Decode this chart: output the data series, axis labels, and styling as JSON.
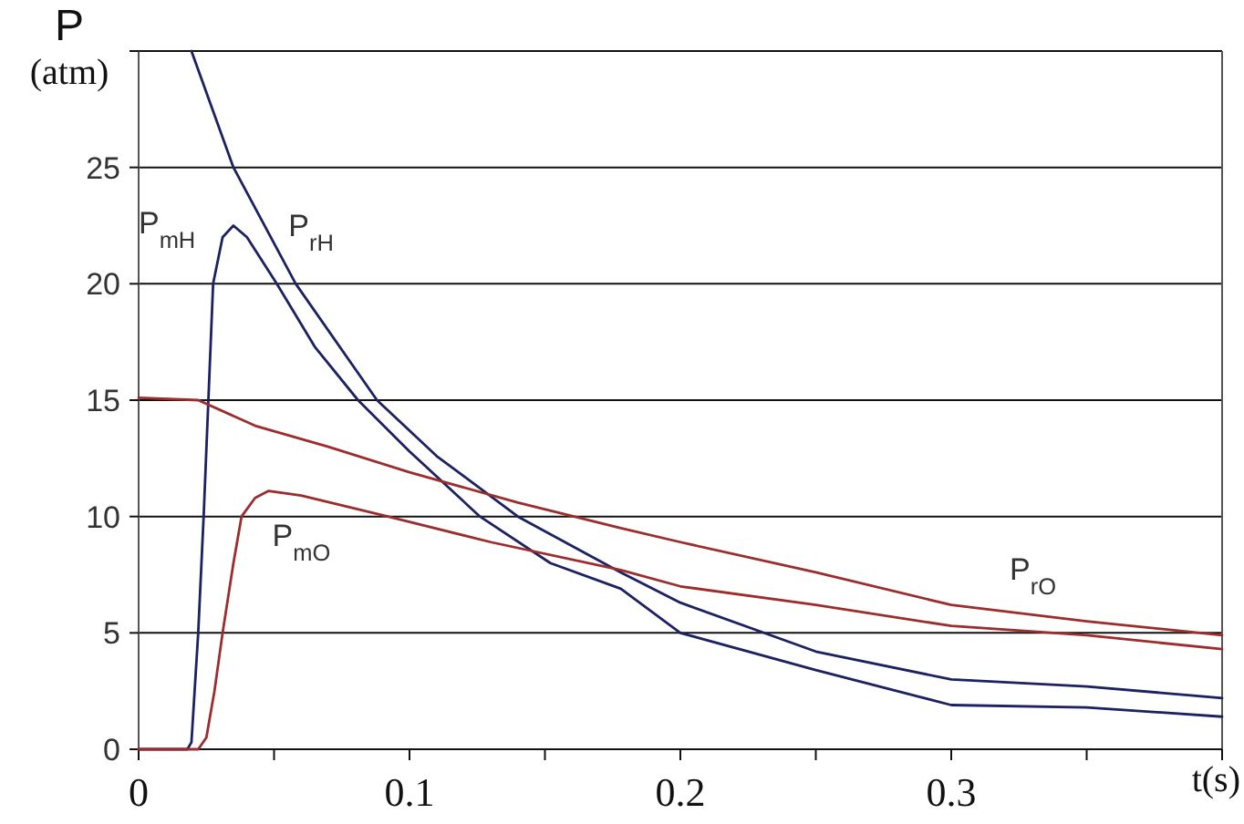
{
  "chart_data": {
    "type": "line",
    "xlabel": "t(s)",
    "ylabel": "P (atm)",
    "xlim": [
      0,
      0.4
    ],
    "xticks": [
      0,
      {
        "value": 0.05,
        "label": null
      },
      0.1,
      {
        "value": 0.15,
        "label": null
      },
      0.2,
      {
        "value": 0.25,
        "label": null
      },
      0.3,
      {
        "value": 0.35,
        "label": null
      },
      {
        "value": 0.4,
        "label": null
      }
    ],
    "ylim": [
      0,
      30
    ],
    "yticks": [
      0,
      5,
      10,
      15,
      20,
      25,
      {
        "value": 30,
        "label": null
      }
    ],
    "grid": "y",
    "marker": "none",
    "line_style": "solid",
    "series": [
      {
        "name": "P$_{mH}$",
        "color": "#1c2160",
        "x": [
          0,
          0.018,
          0.0195,
          0.022,
          0.024,
          0.0275,
          0.031,
          0.035,
          0.04,
          0.051,
          0.065,
          0.081,
          0.1,
          0.126,
          0.152,
          0.178,
          0.2,
          0.25,
          0.3,
          0.35,
          0.4
        ],
        "values": [
          0,
          0,
          0.3,
          5,
          10,
          20,
          22,
          22.5,
          22,
          20,
          17.3,
          15,
          12.8,
          10,
          8,
          6.9,
          5,
          3.4,
          1.9,
          1.8,
          1.4
        ]
      },
      {
        "name": "P$_{rH}$",
        "color": "#1c2160",
        "x": [
          0.0195,
          0.035,
          0.058,
          0.088,
          0.11,
          0.14,
          0.178,
          0.2,
          0.25,
          0.3,
          0.35,
          0.4
        ],
        "values": [
          30,
          25,
          20,
          15,
          12.6,
          10,
          7.6,
          6.3,
          4.2,
          3.0,
          2.7,
          2.2
        ]
      },
      {
        "name": "P$_{mO}$",
        "color": "#9b2d2d",
        "x": [
          0,
          0.022,
          0.025,
          0.028,
          0.031,
          0.035,
          0.038,
          0.043,
          0.048,
          0.06,
          0.092,
          0.13,
          0.178,
          0.2,
          0.25,
          0.3,
          0.35,
          0.4
        ],
        "values": [
          0,
          0,
          0.5,
          2.5,
          5,
          8,
          10,
          10.8,
          11.1,
          10.9,
          10,
          8.9,
          7.7,
          7.0,
          6.2,
          5.3,
          4.9,
          4.3
        ]
      },
      {
        "name": "P$_{rO}$",
        "color": "#9b2d2d",
        "x": [
          0,
          0.022,
          0.043,
          0.07,
          0.1,
          0.14,
          0.178,
          0.2,
          0.25,
          0.3,
          0.35,
          0.4
        ],
        "values": [
          15.1,
          15,
          13.9,
          13,
          11.9,
          10.6,
          9.5,
          8.9,
          7.6,
          6.2,
          5.5,
          4.9
        ]
      }
    ]
  }
}
